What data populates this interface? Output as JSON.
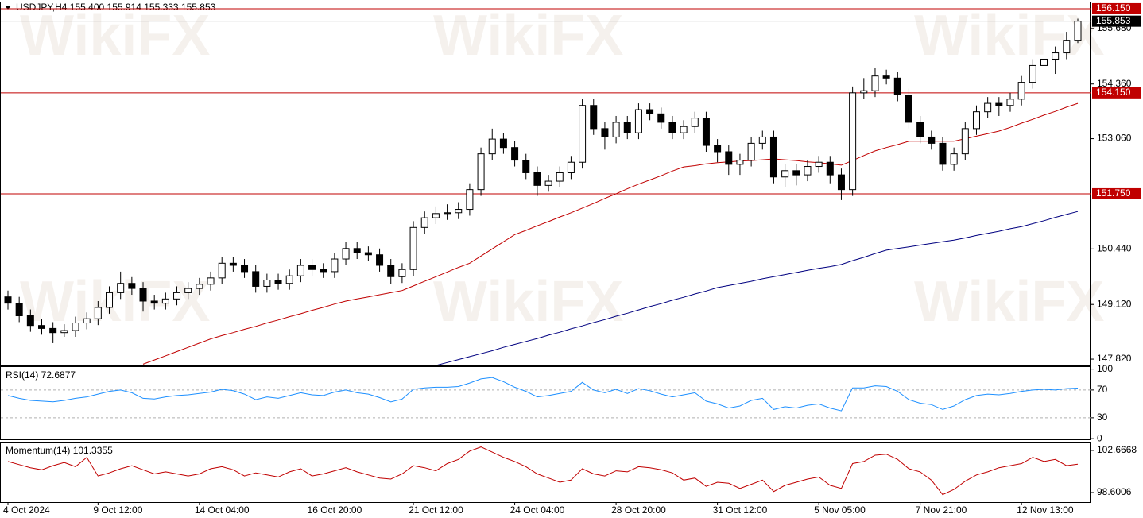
{
  "watermark": "WikiFX",
  "chart_data": [
    {
      "type": "candlestick",
      "title": "USDJPY,H4  155.400 155.914 155.333 155.853",
      "categories": [
        "4 Oct 2024",
        null,
        null,
        null,
        null,
        null,
        null,
        null,
        "9 Oct 12:00",
        null,
        null,
        null,
        null,
        null,
        null,
        null,
        null,
        "14 Oct 04:00",
        null,
        null,
        null,
        null,
        null,
        null,
        null,
        null,
        null,
        "16 Oct 20:00",
        null,
        null,
        null,
        null,
        null,
        null,
        null,
        null,
        "21 Oct 12:00",
        null,
        null,
        null,
        null,
        null,
        null,
        null,
        null,
        "24 Oct 04:00",
        null,
        null,
        null,
        null,
        null,
        null,
        null,
        null,
        "28 Oct 20:00",
        null,
        null,
        null,
        null,
        null,
        null,
        null,
        null,
        "31 Oct 12:00",
        null,
        null,
        null,
        null,
        null,
        null,
        null,
        null,
        "5 Nov 05:00",
        null,
        null,
        null,
        null,
        null,
        null,
        null,
        null,
        "7 Nov 21:00",
        null,
        null,
        null,
        null,
        null,
        null,
        null,
        null,
        "12 Nov 13:00",
        null,
        null,
        null,
        null,
        null
      ],
      "open": [
        149.3,
        149.15,
        148.85,
        148.62,
        148.55,
        148.45,
        148.5,
        148.68,
        148.78,
        149.05,
        149.4,
        149.62,
        149.5,
        149.2,
        149.15,
        149.25,
        149.4,
        149.5,
        149.6,
        149.75,
        150.1,
        150.05,
        149.9,
        149.55,
        149.7,
        149.62,
        149.8,
        150.05,
        149.95,
        149.9,
        150.2,
        150.45,
        150.35,
        150.3,
        150.05,
        149.78,
        149.95,
        150.95,
        151.18,
        151.28,
        151.3,
        151.38,
        151.85,
        152.7,
        153.05,
        152.85,
        152.55,
        152.25,
        151.95,
        152.05,
        152.25,
        152.5,
        153.85,
        153.3,
        153.1,
        153.45,
        153.2,
        153.75,
        153.65,
        153.45,
        153.2,
        153.35,
        153.55,
        152.9,
        152.75,
        152.45,
        152.55,
        152.95,
        153.1,
        152.15,
        152.3,
        152.2,
        152.4,
        152.5,
        152.2,
        151.85,
        154.15,
        154.2,
        154.55,
        154.5,
        154.1,
        153.45,
        153.1,
        152.95,
        152.45,
        152.7,
        153.3,
        153.7,
        153.9,
        153.85,
        154.0,
        154.4,
        154.8,
        154.95,
        155.1,
        155.4
      ],
      "high": [
        149.45,
        149.3,
        149.0,
        148.77,
        148.7,
        148.65,
        148.83,
        148.93,
        149.2,
        149.55,
        149.9,
        149.77,
        149.65,
        149.35,
        149.4,
        149.55,
        149.65,
        149.75,
        149.9,
        150.25,
        150.25,
        150.2,
        150.05,
        149.85,
        149.85,
        149.95,
        150.2,
        150.2,
        150.1,
        150.35,
        150.6,
        150.6,
        150.5,
        150.45,
        150.2,
        150.1,
        151.1,
        151.33,
        151.45,
        151.5,
        151.55,
        152.0,
        152.85,
        153.3,
        153.2,
        153.0,
        152.7,
        152.4,
        152.2,
        152.4,
        152.65,
        154.0,
        154.0,
        153.45,
        153.6,
        153.6,
        153.9,
        153.9,
        153.8,
        153.6,
        153.5,
        153.7,
        153.7,
        153.05,
        152.9,
        152.7,
        153.1,
        153.25,
        153.25,
        152.45,
        152.45,
        152.55,
        152.65,
        152.65,
        152.35,
        154.3,
        154.5,
        154.75,
        154.7,
        154.65,
        154.25,
        153.6,
        153.25,
        153.1,
        152.85,
        153.45,
        153.85,
        154.05,
        154.05,
        154.15,
        154.55,
        154.95,
        155.1,
        155.25,
        155.6,
        155.914
      ],
      "low": [
        149.0,
        148.7,
        148.47,
        148.4,
        148.2,
        148.35,
        148.35,
        148.53,
        148.63,
        148.9,
        149.25,
        149.35,
        148.95,
        149.0,
        149.0,
        149.1,
        149.25,
        149.35,
        149.45,
        149.6,
        149.9,
        149.75,
        149.4,
        149.4,
        149.47,
        149.47,
        149.65,
        149.8,
        149.75,
        149.75,
        150.05,
        150.2,
        150.15,
        149.9,
        149.6,
        149.63,
        149.8,
        150.8,
        151.03,
        151.13,
        151.15,
        151.23,
        151.7,
        152.55,
        152.7,
        152.4,
        152.1,
        151.7,
        151.8,
        151.9,
        152.1,
        152.35,
        153.15,
        152.8,
        152.95,
        153.05,
        153.05,
        153.5,
        153.3,
        153.05,
        153.05,
        153.2,
        152.75,
        152.5,
        152.2,
        152.2,
        152.4,
        152.8,
        152.0,
        151.9,
        151.95,
        152.05,
        152.25,
        152.0,
        151.6,
        151.7,
        154.0,
        154.05,
        154.35,
        153.95,
        153.3,
        152.95,
        152.8,
        152.3,
        152.3,
        152.55,
        153.15,
        153.55,
        153.6,
        153.7,
        153.85,
        154.25,
        154.65,
        154.6,
        154.95,
        155.333
      ],
      "close": [
        149.15,
        148.85,
        148.62,
        148.55,
        148.45,
        148.5,
        148.68,
        148.78,
        149.05,
        149.4,
        149.62,
        149.5,
        149.2,
        149.15,
        149.25,
        149.4,
        149.5,
        149.6,
        149.75,
        150.1,
        150.05,
        149.9,
        149.55,
        149.7,
        149.62,
        149.8,
        150.05,
        149.95,
        149.9,
        150.2,
        150.45,
        150.35,
        150.3,
        150.05,
        149.78,
        149.95,
        150.95,
        151.18,
        151.28,
        151.3,
        151.38,
        151.85,
        152.7,
        153.05,
        152.85,
        152.55,
        152.25,
        151.95,
        152.05,
        152.25,
        152.5,
        153.85,
        153.3,
        153.1,
        153.45,
        153.2,
        153.75,
        153.65,
        153.45,
        153.2,
        153.35,
        153.55,
        152.9,
        152.75,
        152.45,
        152.55,
        152.95,
        153.1,
        152.15,
        152.3,
        152.2,
        152.4,
        152.5,
        152.2,
        151.85,
        154.15,
        154.2,
        154.55,
        154.5,
        154.1,
        153.45,
        153.1,
        152.95,
        152.45,
        152.7,
        153.3,
        153.7,
        153.9,
        153.85,
        154.0,
        154.4,
        154.8,
        154.95,
        155.1,
        155.4,
        155.853
      ],
      "up_color": "#ffffff",
      "down_color": "#000000",
      "overlays": [
        {
          "color": "#c00000",
          "values": [
            null,
            null,
            null,
            null,
            null,
            null,
            null,
            null,
            null,
            null,
            null,
            null,
            147.7,
            147.8,
            147.9,
            148.0,
            148.1,
            148.2,
            148.3,
            148.38,
            148.45,
            148.53,
            148.6,
            148.68,
            148.75,
            148.83,
            148.9,
            148.98,
            149.05,
            149.13,
            149.2,
            149.25,
            149.3,
            149.35,
            149.4,
            149.45,
            149.56,
            149.67,
            149.78,
            149.89,
            150.0,
            150.1,
            150.27,
            150.44,
            150.61,
            150.78,
            150.88,
            150.99,
            151.09,
            151.2,
            151.3,
            151.41,
            151.52,
            151.64,
            151.75,
            151.87,
            151.98,
            152.08,
            152.18,
            152.29,
            152.39,
            152.42,
            152.46,
            152.49,
            152.51,
            152.53,
            152.54,
            152.56,
            152.58,
            152.56,
            152.54,
            152.51,
            152.49,
            152.46,
            152.43,
            152.54,
            152.66,
            152.77,
            152.85,
            152.92,
            153.0,
            153.0,
            153.0,
            153.0,
            153.0,
            153.06,
            153.12,
            153.18,
            153.24,
            153.33,
            153.43,
            153.52,
            153.62,
            153.71,
            153.81,
            153.9
          ]
        },
        {
          "color": "#000080",
          "values": [
            null,
            null,
            null,
            null,
            null,
            null,
            null,
            null,
            null,
            null,
            null,
            null,
            null,
            null,
            null,
            null,
            null,
            null,
            null,
            null,
            null,
            null,
            null,
            null,
            null,
            null,
            null,
            null,
            null,
            null,
            null,
            null,
            null,
            null,
            null,
            null,
            null,
            null,
            147.67,
            147.74,
            147.81,
            147.88,
            147.95,
            148.02,
            148.1,
            148.17,
            148.24,
            148.31,
            148.39,
            148.46,
            148.54,
            148.61,
            148.69,
            148.76,
            148.84,
            148.91,
            148.99,
            149.07,
            149.14,
            149.22,
            149.29,
            149.37,
            149.44,
            149.52,
            149.57,
            149.62,
            149.67,
            149.73,
            149.78,
            149.83,
            149.88,
            149.93,
            149.98,
            150.02,
            150.07,
            150.16,
            150.24,
            150.33,
            150.41,
            150.45,
            150.49,
            150.53,
            150.57,
            150.61,
            150.65,
            150.7,
            150.76,
            150.81,
            150.86,
            150.92,
            150.97,
            151.04,
            151.11,
            151.19,
            151.26,
            151.33
          ]
        }
      ],
      "levels": [
        {
          "value": 156.15,
          "label": "156.150",
          "color": "#c00000"
        },
        {
          "value": 154.15,
          "label": "154.150",
          "color": "#c00000"
        },
        {
          "value": 151.75,
          "label": "151.750",
          "color": "#c00000"
        }
      ],
      "last_price": {
        "value": 155.853,
        "label": "155.853"
      },
      "ylim": [
        147.67,
        156.3
      ],
      "yticks": [
        {
          "value": 147.82,
          "label": "147.820"
        },
        {
          "value": 149.12,
          "label": "149.120"
        },
        {
          "value": 150.44,
          "label": "150.440"
        },
        {
          "value": 153.06,
          "label": "153.060"
        },
        {
          "value": 154.36,
          "label": "154.360"
        },
        {
          "value": 155.68,
          "label": "155.680"
        }
      ]
    },
    {
      "type": "line",
      "title": "RSI(14) 72.6877",
      "color": "#1e90ff",
      "values": [
        62,
        58,
        55,
        54,
        53,
        55,
        58,
        60,
        64,
        68,
        70,
        66,
        58,
        57,
        60,
        62,
        63,
        65,
        67,
        71,
        69,
        64,
        56,
        60,
        58,
        62,
        66,
        63,
        62,
        67,
        70,
        66,
        64,
        59,
        53,
        57,
        71,
        73,
        74,
        74,
        75,
        80,
        86,
        88,
        82,
        74,
        68,
        60,
        62,
        65,
        68,
        81,
        70,
        66,
        71,
        65,
        72,
        69,
        64,
        60,
        63,
        66,
        54,
        50,
        44,
        47,
        55,
        58,
        42,
        46,
        44,
        48,
        50,
        44,
        40,
        73,
        73,
        76,
        75,
        68,
        56,
        51,
        49,
        42,
        47,
        56,
        62,
        64,
        63,
        65,
        68,
        70,
        71,
        70,
        72,
        72.6877
      ],
      "ylim": [
        -1,
        103
      ],
      "yticks": [
        0,
        30,
        70,
        100
      ],
      "dashed_levels": [
        30,
        70
      ]
    },
    {
      "type": "line",
      "title": "Momentum(14) 101.3355",
      "color": "#c00000",
      "values": [
        101.6,
        101.3,
        101.0,
        100.8,
        101.2,
        101.5,
        101.1,
        102.0,
        100.2,
        100.5,
        100.9,
        101.2,
        100.8,
        100.4,
        100.6,
        100.4,
        100.2,
        100.4,
        100.9,
        101.1,
        100.8,
        100.2,
        100.5,
        100.3,
        100.1,
        100.6,
        100.9,
        100.2,
        100.4,
        100.7,
        101.0,
        100.6,
        100.3,
        100.0,
        99.9,
        100.4,
        101.2,
        101.0,
        100.7,
        101.4,
        101.8,
        102.6,
        103.0,
        102.5,
        102.0,
        101.6,
        101.1,
        100.4,
        100.0,
        99.6,
        99.8,
        100.9,
        100.4,
        100.2,
        100.7,
        100.6,
        101.1,
        101.0,
        100.8,
        100.5,
        99.8,
        100.0,
        99.2,
        99.6,
        99.5,
        99.0,
        99.4,
        99.8,
        98.7,
        99.3,
        99.6,
        99.9,
        100.1,
        99.3,
        99.0,
        101.4,
        101.6,
        102.2,
        102.3,
        101.8,
        100.9,
        100.6,
        99.8,
        98.4,
        98.9,
        99.7,
        100.3,
        100.6,
        101.0,
        101.2,
        101.4,
        102.0,
        101.6,
        101.8,
        101.2,
        101.3355
      ],
      "ylim": [
        97.68,
        103.43
      ],
      "yticks": [
        98.6006,
        102.6668
      ]
    }
  ]
}
